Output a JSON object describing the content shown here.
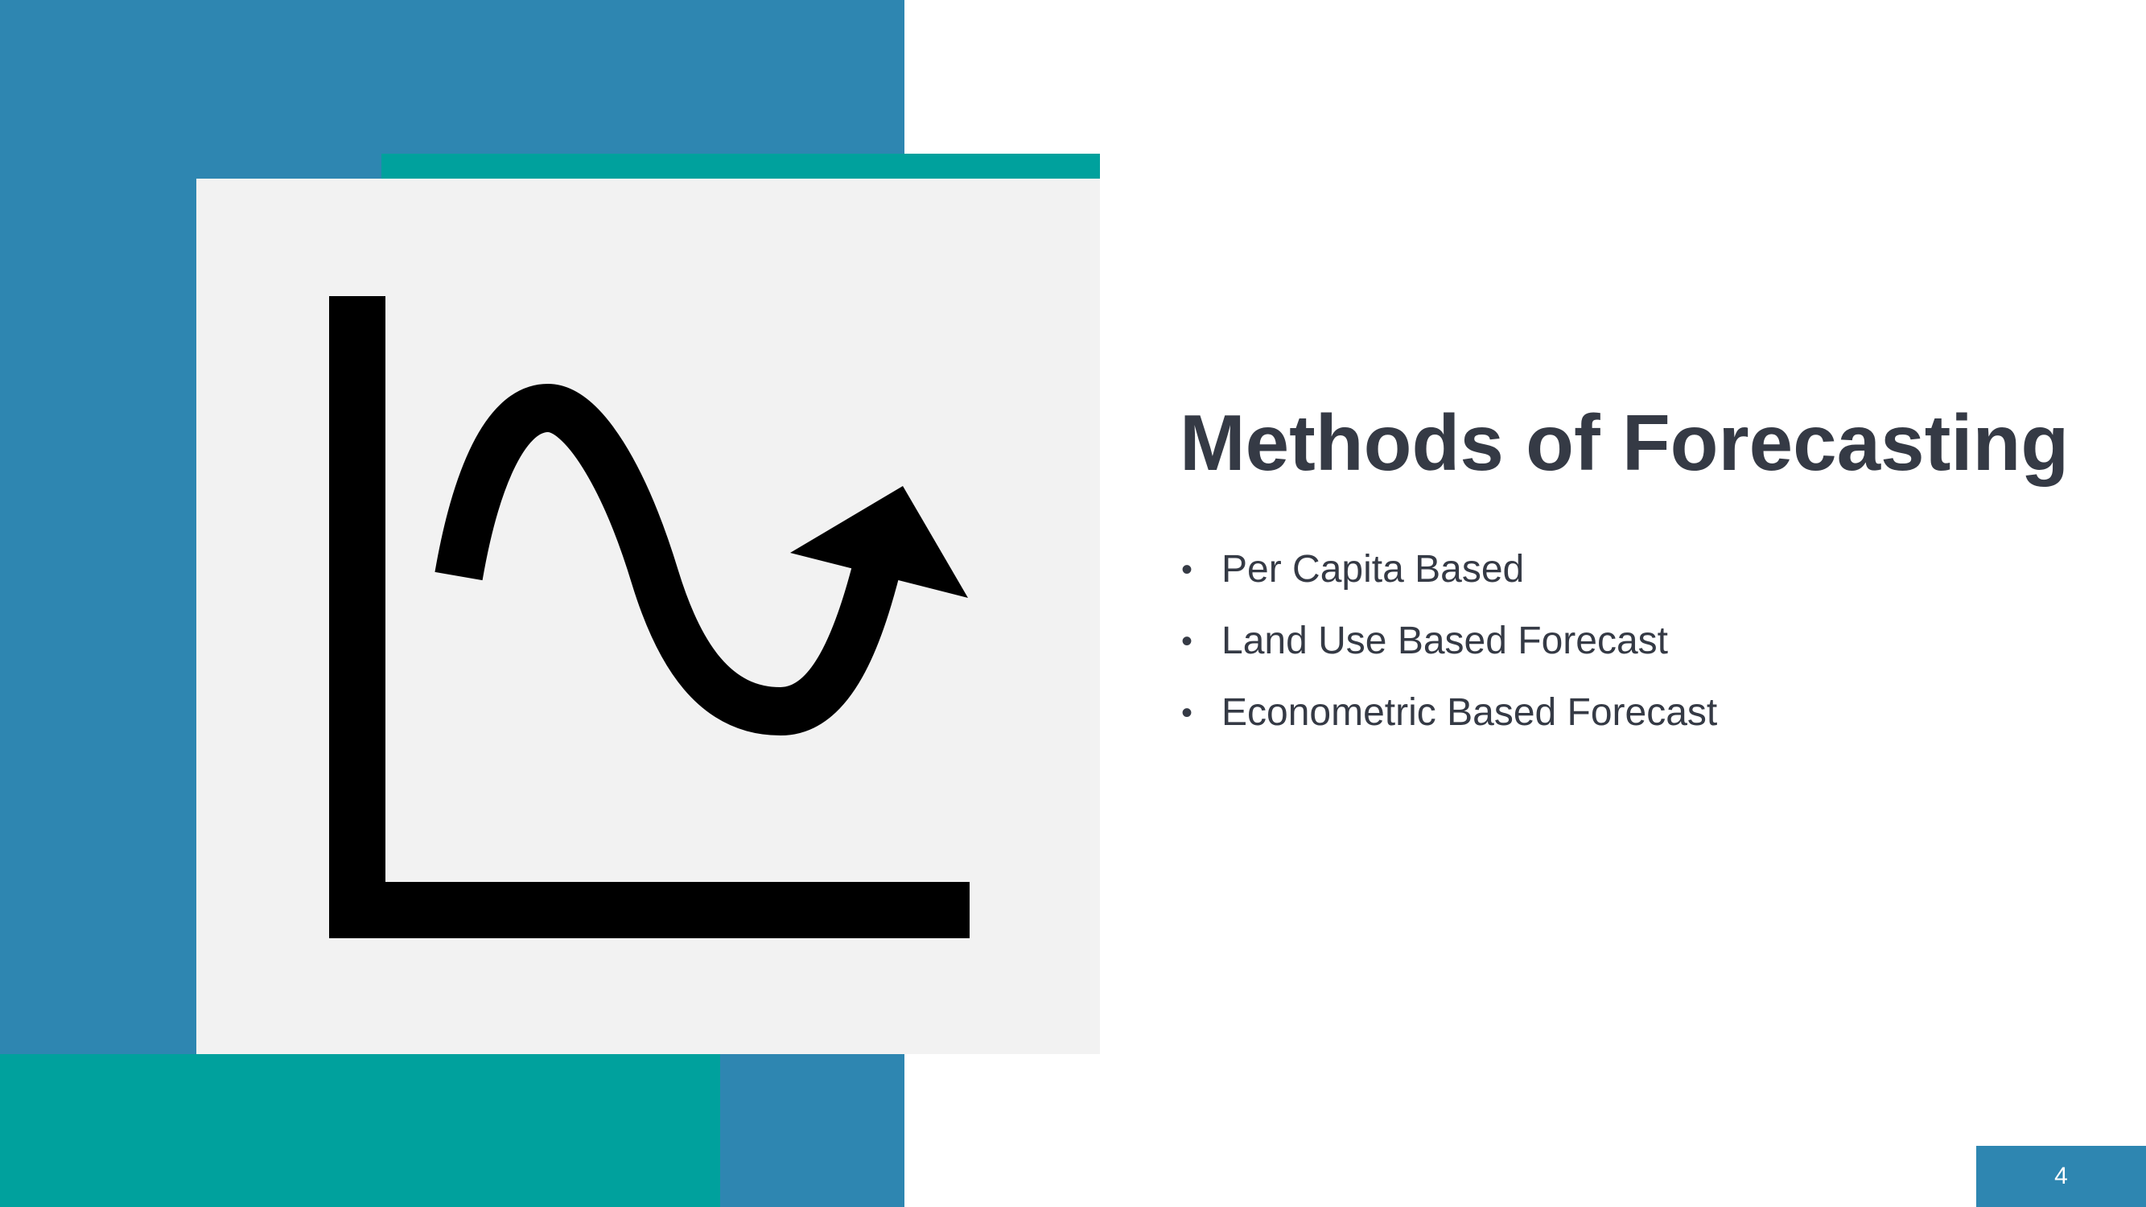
{
  "slide": {
    "title": "Methods of Forecasting",
    "bullets": [
      "Per Capita Based",
      "Land Use Based Forecast",
      "Econometric Based Forecast"
    ],
    "page_number": "4"
  },
  "icon": {
    "name": "line-chart-trend-icon"
  },
  "colors": {
    "blue": "#2e86b1",
    "teal": "#00a19d",
    "panel": "#f2f2f2",
    "text": "#353a45",
    "icon": "#000000"
  }
}
